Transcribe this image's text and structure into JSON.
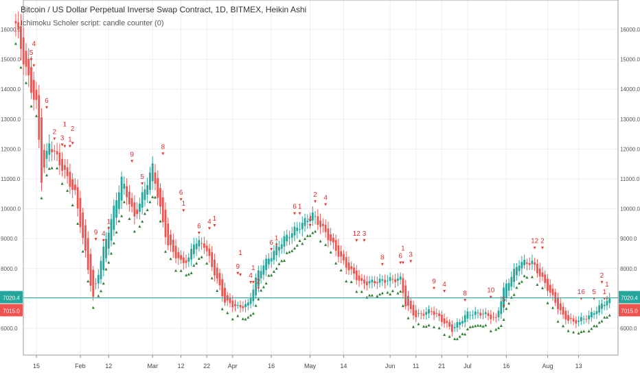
{
  "header": {
    "title": "Bitcoin / US Dollar Perpetual Inverse Swap Contract, 1D, BITMEX, Heikin Ashi",
    "indicator": "Ichimoku Scholer script: candle counter (0)"
  },
  "colors": {
    "up": "#26a69a",
    "down": "#ef5350",
    "marker_up": "#2e7d32",
    "marker_down": "#e53935",
    "label": "#d32f2f",
    "grid": "#eeeeee",
    "price_line": "#26a69a"
  },
  "chart_data": {
    "type": "candlestick",
    "style": "Heikin Ashi",
    "title": "Bitcoin / US Dollar Perpetual Inverse Swap Contract, 1D, BITMEX, Heikin Ashi",
    "ylim": [
      5000,
      17000
    ],
    "y_ticks": [
      "16000.0",
      "15000.0",
      "14000.0",
      "13000.0",
      "12000.0",
      "11000.0",
      "10000.0",
      "9000.0",
      "8000.0",
      "6000.0"
    ],
    "y_tick_values": [
      16000,
      15000,
      14000,
      13000,
      12000,
      11000,
      10000,
      9000,
      8000,
      6000
    ],
    "x_ticks": [
      {
        "day": 8,
        "label": "15"
      },
      {
        "day": 25,
        "label": "Feb"
      },
      {
        "day": 36,
        "label": "12"
      },
      {
        "day": 53,
        "label": "Mar"
      },
      {
        "day": 64,
        "label": "12"
      },
      {
        "day": 74,
        "label": "22"
      },
      {
        "day": 84,
        "label": "Apr"
      },
      {
        "day": 99,
        "label": "16"
      },
      {
        "day": 114,
        "label": "May"
      },
      {
        "day": 127,
        "label": "14"
      },
      {
        "day": 145,
        "label": "Jun"
      },
      {
        "day": 155,
        "label": "11"
      },
      {
        "day": 165,
        "label": "21"
      },
      {
        "day": 175,
        "label": "Jul"
      },
      {
        "day": 190,
        "label": "16"
      },
      {
        "day": 206,
        "label": "Aug"
      },
      {
        "day": 218,
        "label": "13"
      }
    ],
    "close_anchors": [
      [
        0,
        16200
      ],
      [
        3,
        15000
      ],
      [
        6,
        14000
      ],
      [
        8,
        13500
      ],
      [
        10,
        11000
      ],
      [
        13,
        12200
      ],
      [
        19,
        11200
      ],
      [
        23,
        10500
      ],
      [
        29,
        7500
      ],
      [
        30,
        7000
      ],
      [
        33,
        8300
      ],
      [
        41,
        11000
      ],
      [
        46,
        9700
      ],
      [
        53,
        11400
      ],
      [
        57,
        9500
      ],
      [
        59,
        8800
      ],
      [
        64,
        8200
      ],
      [
        67,
        8300
      ],
      [
        69,
        8900
      ],
      [
        73,
        8800
      ],
      [
        81,
        6900
      ],
      [
        86,
        6700
      ],
      [
        90,
        6800
      ],
      [
        94,
        7900
      ],
      [
        104,
        9000
      ],
      [
        115,
        9800
      ],
      [
        120,
        9200
      ],
      [
        127,
        8200
      ],
      [
        134,
        7500
      ],
      [
        142,
        7600
      ],
      [
        149,
        7650
      ],
      [
        151,
        6800
      ],
      [
        155,
        6400
      ],
      [
        161,
        6600
      ],
      [
        169,
        5950
      ],
      [
        175,
        6500
      ],
      [
        181,
        6500
      ],
      [
        186,
        6300
      ],
      [
        189,
        7300
      ],
      [
        195,
        8200
      ],
      [
        200,
        8200
      ],
      [
        205,
        7500
      ],
      [
        212,
        6400
      ],
      [
        216,
        6200
      ],
      [
        222,
        6400
      ],
      [
        230,
        7020
      ]
    ],
    "counter_labels": [
      {
        "day": 6,
        "text": "5",
        "price": 15150
      },
      {
        "day": 7,
        "text": "4",
        "price": 14950
      },
      {
        "day": 12,
        "text": "6",
        "price": 13550
      },
      {
        "day": 15,
        "text": "2",
        "price": 12500
      },
      {
        "day": 18,
        "text": "3",
        "price": 12300
      },
      {
        "day": 19,
        "text": "1",
        "price": 12250
      },
      {
        "day": 21,
        "text": "1",
        "price": 12250
      },
      {
        "day": 22,
        "text": "2",
        "price": 12350
      },
      {
        "day": 31,
        "text": "9",
        "price": 9140
      },
      {
        "day": 34,
        "text": "4",
        "price": 9100
      },
      {
        "day": 36,
        "text": "1",
        "price": 9500
      },
      {
        "day": 45,
        "text": "9",
        "price": 11750
      },
      {
        "day": 49,
        "text": "5",
        "price": 11000
      },
      {
        "day": 57,
        "text": "8",
        "price": 12000
      },
      {
        "day": 64,
        "text": "6",
        "price": 10470
      },
      {
        "day": 65,
        "text": "1",
        "price": 10100
      },
      {
        "day": 71,
        "text": "6",
        "price": 9350
      },
      {
        "day": 75,
        "text": "4",
        "price": 9500
      },
      {
        "day": 77,
        "text": "1",
        "price": 9600
      },
      {
        "day": 86,
        "text": "9",
        "price": 8000
      },
      {
        "day": 87,
        "text": "1",
        "price": 7950
      },
      {
        "day": 91,
        "text": "4",
        "price": 7700
      },
      {
        "day": 92,
        "text": "1",
        "price": 7700
      },
      {
        "day": 94,
        "text": "2",
        "price": 7500
      },
      {
        "day": 99,
        "text": "6",
        "price": 8800
      },
      {
        "day": 101,
        "text": "1",
        "price": 8950
      },
      {
        "day": 108,
        "text": "6",
        "price": 10000
      },
      {
        "day": 110,
        "text": "1",
        "price": 10000
      },
      {
        "day": 114,
        "text": "4",
        "price": 9600
      },
      {
        "day": 116,
        "text": "2",
        "price": 10400
      },
      {
        "day": 120,
        "text": "4",
        "price": 10300
      },
      {
        "day": 132,
        "text": "12",
        "price": 9100
      },
      {
        "day": 135,
        "text": "3",
        "price": 9100
      },
      {
        "day": 142,
        "text": "8",
        "price": 8300
      },
      {
        "day": 149,
        "text": "6",
        "price": 8350
      },
      {
        "day": 150,
        "text": "1",
        "price": 8350
      },
      {
        "day": 153,
        "text": "3",
        "price": 8400
      },
      {
        "day": 162,
        "text": "9",
        "price": 7500
      },
      {
        "day": 166,
        "text": "4",
        "price": 7400
      },
      {
        "day": 174,
        "text": "8",
        "price": 7100
      },
      {
        "day": 184,
        "text": "10",
        "price": 7200
      },
      {
        "day": 189,
        "text": "5",
        "price": 6900
      },
      {
        "day": 201,
        "text": "12",
        "price": 8850
      },
      {
        "day": 204,
        "text": "2",
        "price": 8850
      },
      {
        "day": 219,
        "text": "16",
        "price": 7150
      },
      {
        "day": 224,
        "text": "5",
        "price": 7150
      },
      {
        "day": 227,
        "text": "2",
        "price": 7700
      },
      {
        "day": 228,
        "text": "1",
        "price": 7150
      },
      {
        "day": 229,
        "text": "1",
        "price": 7150
      }
    ],
    "last_price": 7020.4,
    "last_price_label": "7020.4",
    "ha_close": 7015.0,
    "ha_close_label": "7015.0"
  }
}
